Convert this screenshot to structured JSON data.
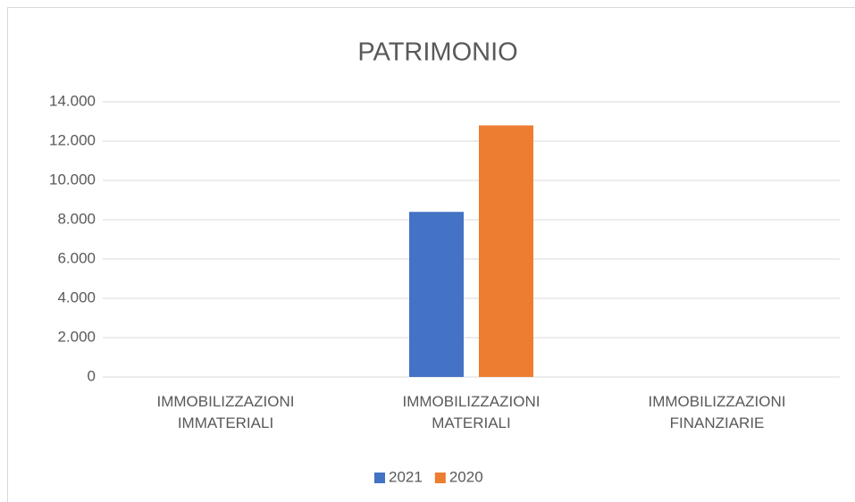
{
  "chart_data": {
    "type": "bar",
    "title": "PATRIMONIO",
    "categories": [
      "IMMOBILIZZAZIONI IMMATERIALI",
      "IMMOBILIZZAZIONI MATERIALI",
      "IMMOBILIZZAZIONI FINANZIARIE"
    ],
    "series": [
      {
        "name": "2021",
        "color": "#4472c4",
        "values": [
          0,
          8400,
          0
        ]
      },
      {
        "name": "2020",
        "color": "#ed7d31",
        "values": [
          0,
          12800,
          0
        ]
      }
    ],
    "ylim": [
      0,
      14000
    ],
    "yticks": [
      0,
      {
        "value": 2000,
        "label": "2.000"
      },
      {
        "value": 4000,
        "label": "4.000"
      },
      {
        "value": 6000,
        "label": "6.000"
      },
      {
        "value": 8000,
        "label": "8.000"
      },
      {
        "value": 10000,
        "label": "10.000"
      },
      {
        "value": 12000,
        "label": "12.000"
      },
      {
        "value": 14000,
        "label": "14.000"
      }
    ],
    "grid": true,
    "legend": "bottom"
  }
}
